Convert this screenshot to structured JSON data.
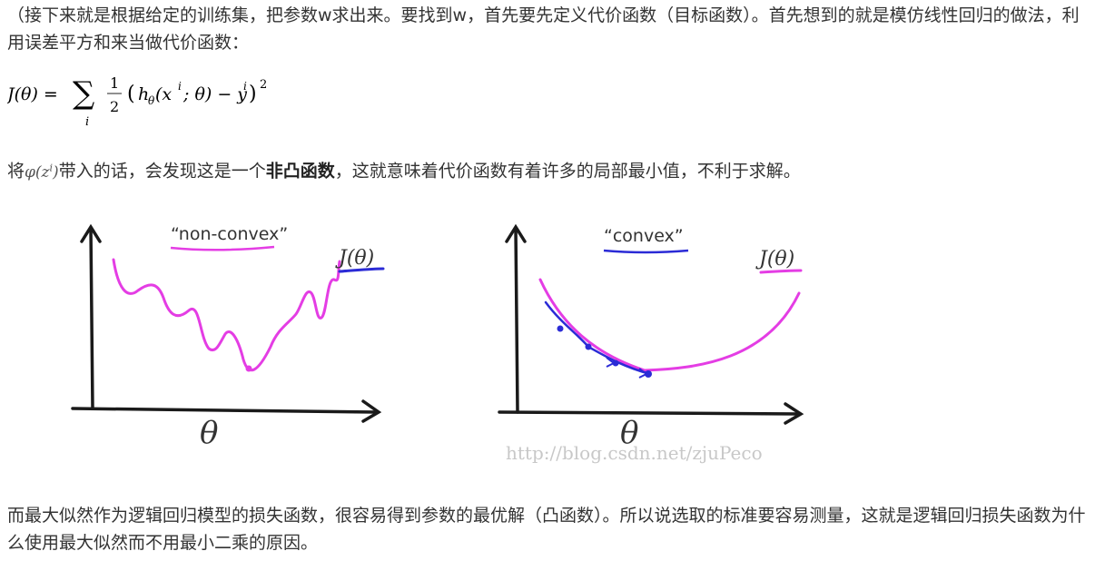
{
  "para1": "（接下来就是根据给定的训练集，把参数w求出来。要找到w，首先要先定义代价函数（目标函数）。首先想到的就是模仿线性回归的做法，利用误差平方和来当做代价函数：",
  "formula": {
    "lhs": "J(θ) = ",
    "sum": "∑",
    "sub_i": "i",
    "num": "1",
    "den": "2",
    "lparen": "(",
    "h": "h",
    "h_sub": "θ",
    "args_open": "(x",
    "x_sup": "i",
    "args_rest": "; θ) − y",
    "y_sup": "i",
    "rparen": ")",
    "pow": "2"
  },
  "para3": {
    "prefix": "将",
    "phi": "φ(z",
    "phi_sup": "i",
    "phi_close": ")",
    "mid": "带入的话，会发现这是一个",
    "bold": "非凸函数",
    "suffix": "，这就意味着代价函数有着许多的局部最小值，不利于求解。"
  },
  "figure": {
    "left": {
      "label": "“non-convex”",
      "j_label": "J(θ)",
      "x_label": "θ"
    },
    "right": {
      "label": "“convex”",
      "j_label": "J(θ)",
      "x_label": "θ"
    },
    "watermark": "http://blog.csdn.net/zjuPeco",
    "colors": {
      "curve": "#e43de4",
      "blue": "#2b2bd6",
      "axis": "#1a1a1a"
    }
  },
  "para4": "而最大似然作为逻辑回归模型的损失函数，很容易得到参数的最优解（凸函数）。所以说选取的标准要容易测量，这就是逻辑回归损失函数为什么使用最大似然而不用最小二乘的原因。"
}
